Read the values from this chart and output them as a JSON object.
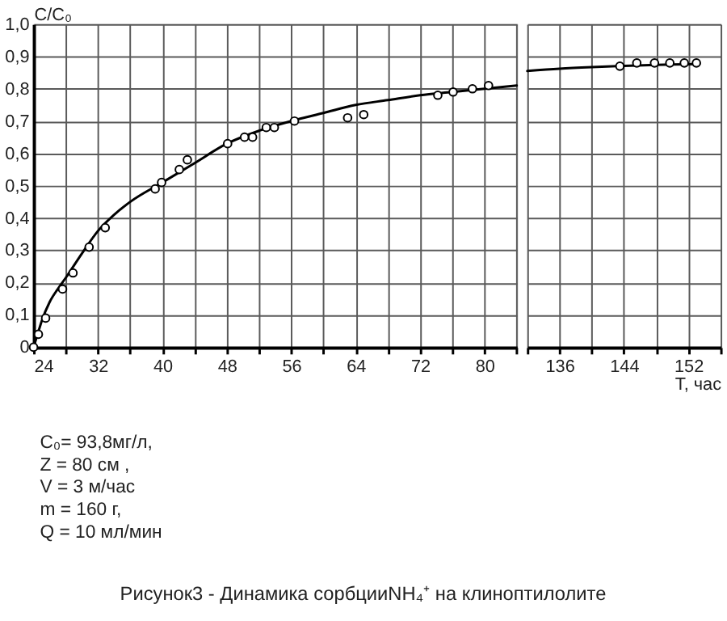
{
  "chart_data": [
    {
      "type": "scatter",
      "title": "Рисунок3 - Динамика сорбцииNH₄⁺ на клиноптилолите",
      "ylabel": "C/C₀",
      "annotations": [
        "C₀= 93,8мг/л,",
        "Z = 80 см ,",
        "V = 3 м/час",
        "m = 160 г,",
        "Q = 10 мл/мин"
      ],
      "xlim": [
        24,
        84
      ],
      "ylim": [
        0,
        1.0
      ],
      "xticks": [
        24,
        {
          "value": 28,
          "label": null
        },
        32,
        {
          "value": 36,
          "label": null
        },
        40,
        {
          "value": 44,
          "label": null
        },
        48,
        {
          "value": 52,
          "label": null
        },
        56,
        {
          "value": 60,
          "label": null
        },
        64,
        {
          "value": 68,
          "label": null
        },
        72,
        {
          "value": 76,
          "label": null
        },
        80,
        {
          "value": 84,
          "label": null
        }
      ],
      "yticks": [
        0,
        {
          "value": 0.1,
          "label": "0,1"
        },
        {
          "value": 0.2,
          "label": "0,2"
        },
        {
          "value": 0.3,
          "label": "0,3"
        },
        {
          "value": 0.4,
          "label": "0,4"
        },
        {
          "value": 0.5,
          "label": "0,5"
        },
        {
          "value": 0.6,
          "label": "0,6"
        },
        {
          "value": 0.7,
          "label": "0,7"
        },
        {
          "value": 0.8,
          "label": "0,8"
        },
        {
          "value": 0.9,
          "label": "0,9"
        },
        {
          "value": 1.0,
          "label": "1,0"
        }
      ],
      "grid": true,
      "series": [
        {
          "marker": "circle",
          "color": "#000000",
          "x": [
            24,
            24.6,
            25.5,
            27.6,
            28.9,
            30.9,
            32.9,
            39.1,
            39.9,
            42.1,
            43.1,
            48.1,
            50.2,
            51.2,
            52.9,
            53.9,
            56.4,
            63.0,
            65.0,
            74.2,
            76.1,
            78.5,
            80.5
          ],
          "values": [
            0.0,
            0.04,
            0.09,
            0.18,
            0.23,
            0.31,
            0.37,
            0.49,
            0.51,
            0.55,
            0.58,
            0.63,
            0.65,
            0.65,
            0.68,
            0.68,
            0.7,
            0.71,
            0.72,
            0.78,
            0.79,
            0.8,
            0.81
          ]
        },
        {
          "type": "line",
          "color": "#000000",
          "x": [
            24,
            24.5,
            25,
            26,
            27,
            28,
            30,
            32,
            34,
            36,
            40,
            44,
            48,
            52,
            56,
            60,
            64,
            68,
            72,
            76,
            80,
            84
          ],
          "values": [
            0,
            0.04,
            0.08,
            0.14,
            0.18,
            0.215,
            0.29,
            0.36,
            0.41,
            0.45,
            0.51,
            0.57,
            0.63,
            0.67,
            0.7,
            0.725,
            0.75,
            0.765,
            0.78,
            0.79,
            0.8,
            0.81
          ]
        }
      ]
    },
    {
      "type": "scatter",
      "xlabel": "T, час",
      "tick_labels": "x",
      "xlim": [
        132,
        156
      ],
      "ylim": [
        0,
        1.0
      ],
      "xticks": [
        {
          "value": 132,
          "label": null
        },
        136,
        {
          "value": 140,
          "label": null
        },
        144,
        {
          "value": 148,
          "label": null
        },
        152,
        {
          "value": 156,
          "label": null
        }
      ],
      "yticks": [
        0,
        0.1,
        0.2,
        0.3,
        0.4,
        0.5,
        0.6,
        0.7,
        0.8,
        0.9,
        1.0
      ],
      "grid": true,
      "series": [
        {
          "marker": "circle",
          "color": "#000000",
          "x": [
            143.5,
            145.6,
            147.8,
            149.7,
            151.5,
            153.0
          ],
          "values": [
            0.87,
            0.88,
            0.88,
            0.88,
            0.88,
            0.88
          ]
        },
        {
          "type": "line",
          "color": "#000000",
          "x": [
            132,
            136,
            140,
            144,
            148,
            152,
            153.4
          ],
          "values": [
            0.855,
            0.862,
            0.867,
            0.871,
            0.874,
            0.876,
            0.877
          ]
        }
      ]
    }
  ]
}
